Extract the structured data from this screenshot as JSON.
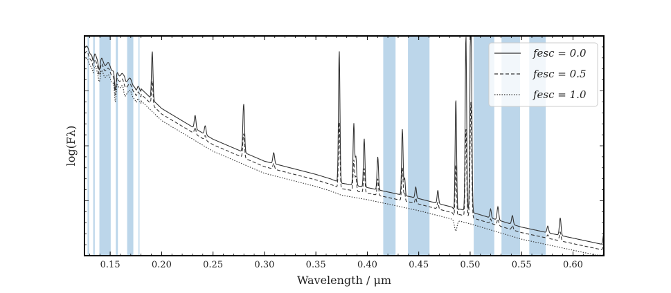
{
  "chart_data": {
    "type": "line",
    "title": "",
    "xlabel": "Wavelength / μm",
    "ylabel": "log(Fλ)",
    "xlim": [
      0.125,
      0.63
    ],
    "ylim": [
      0,
      100
    ],
    "yticks_labeled": false,
    "x_ticks": [
      {
        "value": 0.15,
        "label": "0.15"
      },
      {
        "value": 0.2,
        "label": "0.20"
      },
      {
        "value": 0.25,
        "label": "0.25"
      },
      {
        "value": 0.3,
        "label": "0.30"
      },
      {
        "value": 0.35,
        "label": "0.35"
      },
      {
        "value": 0.4,
        "label": "0.40"
      },
      {
        "value": 0.45,
        "label": "0.45"
      },
      {
        "value": 0.5,
        "label": "0.50"
      },
      {
        "value": 0.55,
        "label": "0.55"
      },
      {
        "value": 0.6,
        "label": "0.60"
      }
    ],
    "shaded_bands": [
      [
        0.128,
        0.1295
      ],
      [
        0.1335,
        0.135
      ],
      [
        0.1395,
        0.1505
      ],
      [
        0.1555,
        0.1575
      ],
      [
        0.1665,
        0.1725
      ],
      [
        0.1775,
        0.1785
      ],
      [
        0.4155,
        0.4275
      ],
      [
        0.4395,
        0.4605
      ],
      [
        0.5035,
        0.5235
      ],
      [
        0.5305,
        0.5485
      ],
      [
        0.5575,
        0.5735
      ]
    ],
    "band_color": "#bcd6ea",
    "line_color": "#333333",
    "continuum_points": [
      [
        0.125,
        95
      ],
      [
        0.15,
        86
      ],
      [
        0.18,
        76
      ],
      [
        0.2,
        67
      ],
      [
        0.25,
        53
      ],
      [
        0.3,
        43
      ],
      [
        0.35,
        37
      ],
      [
        0.364,
        35
      ],
      [
        0.375,
        33
      ],
      [
        0.4,
        31
      ],
      [
        0.45,
        26
      ],
      [
        0.5,
        20
      ],
      [
        0.55,
        13
      ],
      [
        0.6,
        8
      ],
      [
        0.63,
        5
      ]
    ],
    "absorption_features": [
      {
        "x": 0.1335,
        "depth": 4,
        "width": 0.0008
      },
      {
        "x": 0.1395,
        "depth": 5,
        "width": 0.0009
      },
      {
        "x": 0.155,
        "depth": 10,
        "width": 0.0008
      },
      {
        "x": 0.164,
        "depth": 3,
        "width": 0.001
      },
      {
        "x": 0.1755,
        "depth": 3,
        "width": 0.001
      },
      {
        "x": 0.486,
        "depth": 5,
        "width": 0.0012
      }
    ],
    "emission_lines": [
      {
        "x": 0.164,
        "height": 3,
        "width": 0.0008
      },
      {
        "x": 0.1909,
        "height": 22,
        "width": 0.0007
      },
      {
        "x": 0.2326,
        "height": 6,
        "width": 0.0008
      },
      {
        "x": 0.2424,
        "height": 4,
        "width": 0.0008
      },
      {
        "x": 0.2798,
        "height": 22,
        "width": 0.0008
      },
      {
        "x": 0.309,
        "height": 5,
        "width": 0.0008
      },
      {
        "x": 0.3727,
        "height": 60,
        "width": 0.0007
      },
      {
        "x": 0.3869,
        "height": 28,
        "width": 0.0007
      },
      {
        "x": 0.3889,
        "height": 13,
        "width": 0.0007
      },
      {
        "x": 0.397,
        "height": 22,
        "width": 0.0007
      },
      {
        "x": 0.4102,
        "height": 15,
        "width": 0.0007
      },
      {
        "x": 0.4341,
        "height": 30,
        "width": 0.0007
      },
      {
        "x": 0.4363,
        "height": 8,
        "width": 0.0006
      },
      {
        "x": 0.4471,
        "height": 5,
        "width": 0.0007
      },
      {
        "x": 0.4686,
        "height": 6,
        "width": 0.0007
      },
      {
        "x": 0.4861,
        "height": 55,
        "width": 0.0007
      },
      {
        "x": 0.4959,
        "height": 80,
        "width": 0.0007
      },
      {
        "x": 0.5007,
        "height": 105,
        "width": 0.0008
      },
      {
        "x": 0.5199,
        "height": 4,
        "width": 0.0007
      },
      {
        "x": 0.527,
        "height": 6,
        "width": 0.0008
      },
      {
        "x": 0.5411,
        "height": 4,
        "width": 0.0008
      },
      {
        "x": 0.5755,
        "height": 3,
        "width": 0.0008
      },
      {
        "x": 0.5876,
        "height": 8,
        "width": 0.0008
      },
      {
        "x": 0.63,
        "height": 5,
        "width": 0.0008
      }
    ],
    "series": [
      {
        "name": "f_esc = 0.0",
        "legend_label": "fesc = 0.0",
        "linestyle": "solid",
        "offset": 0,
        "line_scale": 1.0
      },
      {
        "name": "f_esc = 0.5",
        "legend_label": "fesc = 0.5",
        "linestyle": "dashed",
        "offset": 2.5,
        "line_scale": 0.5
      },
      {
        "name": "f_esc = 1.0",
        "legend_label": "fesc = 1.0",
        "linestyle": "dotted",
        "offset": 5.5,
        "line_scale": 0.0
      }
    ],
    "legend_position": "top-right"
  }
}
